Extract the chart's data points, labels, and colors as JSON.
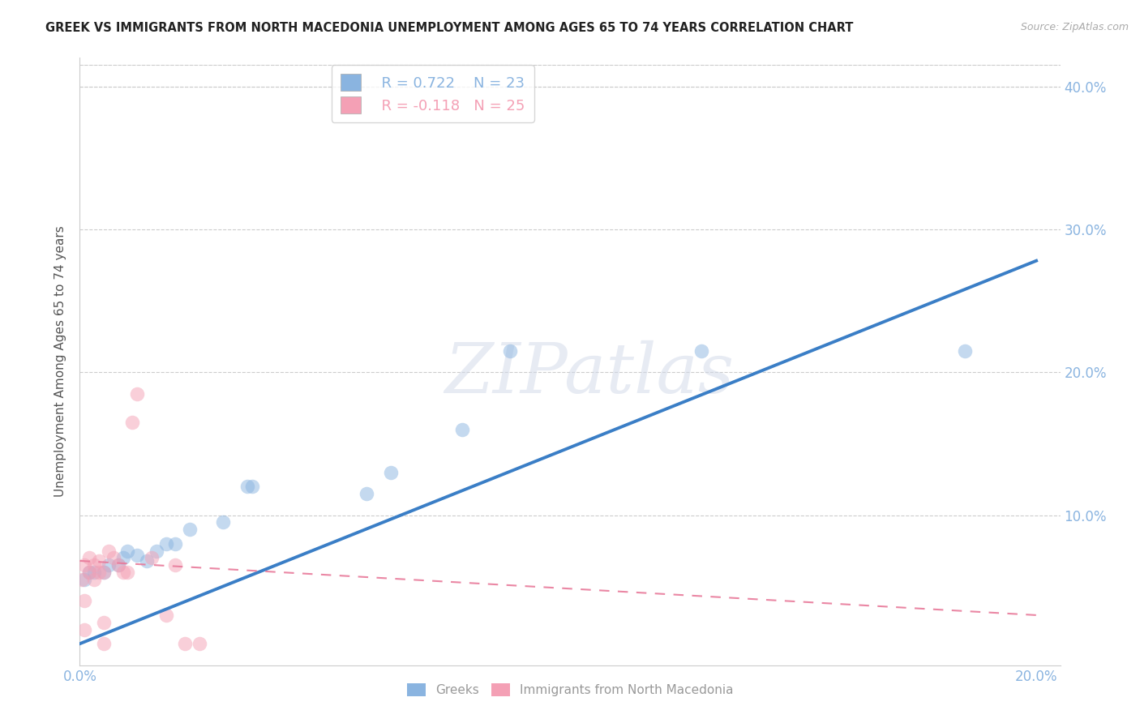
{
  "title": "GREEK VS IMMIGRANTS FROM NORTH MACEDONIA UNEMPLOYMENT AMONG AGES 65 TO 74 YEARS CORRELATION CHART",
  "source": "Source: ZipAtlas.com",
  "ylabel": "Unemployment Among Ages 65 to 74 years",
  "xlim": [
    0.0,
    0.205
  ],
  "ylim": [
    -0.005,
    0.42
  ],
  "xticks": [
    0.0,
    0.2
  ],
  "yticks": [
    0.1,
    0.2,
    0.3,
    0.4
  ],
  "xtick_labels": [
    "0.0%",
    "20.0%"
  ],
  "ytick_labels": [
    "10.0%",
    "20.0%",
    "30.0%",
    "40.0%"
  ],
  "legend_r_greek": "R = 0.722",
  "legend_n_greek": "N = 23",
  "legend_r_nm": "R = -0.118",
  "legend_n_nm": "N = 25",
  "blue_color": "#8ab4e0",
  "pink_color": "#f4a0b5",
  "blue_line_color": "#3a7ec6",
  "pink_line_color": "#e87a9a",
  "background_color": "#ffffff",
  "watermark": "ZIPatlas",
  "greek_x": [
    0.001,
    0.002,
    0.003,
    0.005,
    0.006,
    0.008,
    0.009,
    0.01,
    0.012,
    0.014,
    0.016,
    0.018,
    0.02,
    0.023,
    0.03,
    0.035,
    0.036,
    0.06,
    0.065,
    0.08,
    0.09,
    0.13,
    0.185
  ],
  "greek_y": [
    0.055,
    0.06,
    0.06,
    0.06,
    0.065,
    0.065,
    0.07,
    0.075,
    0.072,
    0.068,
    0.075,
    0.08,
    0.08,
    0.09,
    0.095,
    0.12,
    0.12,
    0.115,
    0.13,
    0.16,
    0.215,
    0.215,
    0.215
  ],
  "nm_x": [
    0.0005,
    0.001,
    0.001,
    0.001,
    0.002,
    0.002,
    0.003,
    0.003,
    0.004,
    0.004,
    0.005,
    0.005,
    0.005,
    0.006,
    0.007,
    0.008,
    0.009,
    0.01,
    0.011,
    0.012,
    0.015,
    0.018,
    0.02,
    0.022,
    0.025
  ],
  "nm_y": [
    0.055,
    0.02,
    0.04,
    0.065,
    0.06,
    0.07,
    0.055,
    0.065,
    0.06,
    0.068,
    0.01,
    0.025,
    0.06,
    0.075,
    0.07,
    0.065,
    0.06,
    0.06,
    0.165,
    0.185,
    0.07,
    0.03,
    0.065,
    0.01,
    0.01
  ],
  "blue_line_x0": 0.0,
  "blue_line_y0": 0.01,
  "blue_line_x1": 0.2,
  "blue_line_y1": 0.278,
  "pink_line_x0": 0.0,
  "pink_line_y0": 0.068,
  "pink_line_x1": 0.2,
  "pink_line_y1": 0.03,
  "title_fontsize": 10.5,
  "axis_label_fontsize": 11,
  "tick_fontsize": 12,
  "legend_fontsize": 13
}
